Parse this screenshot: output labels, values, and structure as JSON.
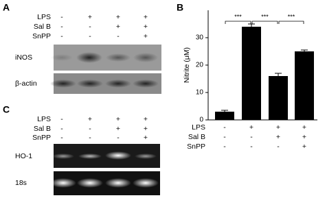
{
  "panel_a": {
    "label": "A",
    "conditions": [
      {
        "name": "LPS",
        "signs": [
          "-",
          "+",
          "+",
          "+"
        ]
      },
      {
        "name": "Sal B",
        "signs": [
          "-",
          "-",
          "+",
          "+"
        ]
      },
      {
        "name": "SnPP",
        "signs": [
          "-",
          "-",
          "-",
          "+"
        ]
      }
    ],
    "blots": [
      "iNOS",
      "β-actin"
    ]
  },
  "panel_c": {
    "label": "C",
    "conditions": [
      {
        "name": "LPS",
        "signs": [
          "-",
          "+",
          "+",
          "+"
        ]
      },
      {
        "name": "Sal B",
        "signs": [
          "-",
          "-",
          "+",
          "+"
        ]
      },
      {
        "name": "SnPP",
        "signs": [
          "-",
          "-",
          "-",
          "+"
        ]
      }
    ],
    "blots": [
      "HO-1",
      "18s"
    ]
  },
  "chart_data": {
    "type": "bar",
    "label": "B",
    "y_label": "Nitrite (μM)",
    "values": [
      3,
      34,
      16,
      25
    ],
    "errors": [
      0.5,
      1,
      1,
      0.5
    ],
    "color": "#000000",
    "ylim": [
      0,
      40
    ],
    "yticks": [
      0,
      10,
      20,
      30
    ],
    "annotations": [
      "***",
      "***",
      "***"
    ],
    "conditions": [
      {
        "name": "LPS",
        "signs": [
          "-",
          "+",
          "+",
          "+"
        ]
      },
      {
        "name": "Sal B",
        "signs": [
          "-",
          "-",
          "+",
          "+"
        ]
      },
      {
        "name": "SnPP",
        "signs": [
          "-",
          "-",
          "-",
          "+"
        ]
      }
    ]
  }
}
